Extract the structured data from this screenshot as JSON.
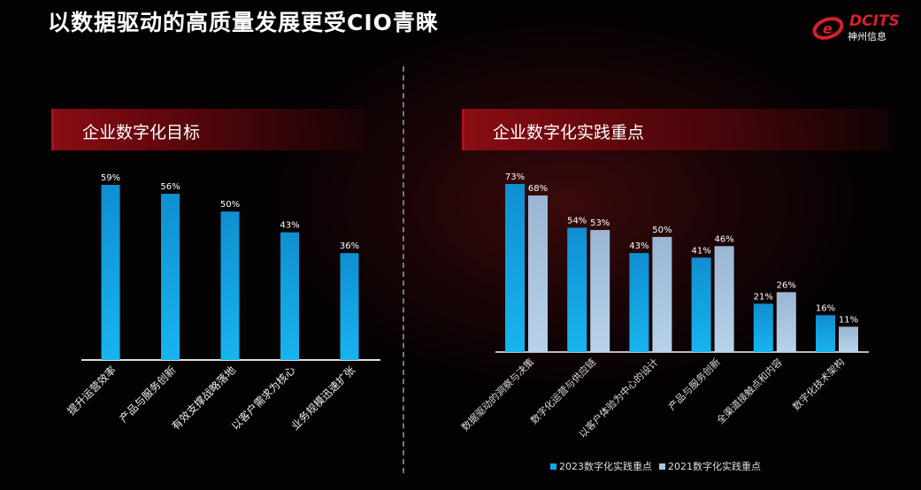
{
  "title": "以数据驱动的高质量发展更受CIO青睐",
  "logo": {
    "en": "DCITS",
    "cn": "神州信息"
  },
  "colors": {
    "series2023": "#13a6e6",
    "series2021": "#a9c4e0",
    "header": "#8a0d14"
  },
  "chart_data": [
    {
      "type": "bar",
      "title": "企业数字化目标",
      "categories": [
        "提升运营效率",
        "产品与服务创新",
        "有效支撑战略落地",
        "以客户需求为核心",
        "业务规模迅速扩张"
      ],
      "values": [
        59,
        56,
        50,
        43,
        36
      ],
      "value_suffix": "%",
      "ylim": [
        0,
        60
      ],
      "grid": false
    },
    {
      "type": "bar",
      "title": "企业数字化实践重点",
      "categories": [
        "数据驱动的洞察与决策",
        "数字化运营与供应链",
        "以客户体验为中心的设计",
        "产品与服务创新",
        "全渠道接触点和内容",
        "数字化技术架构"
      ],
      "series": [
        {
          "name": "2023数字化实践重点",
          "values": [
            73,
            54,
            43,
            41,
            21,
            16
          ]
        },
        {
          "name": "2021数字化实践重点",
          "values": [
            68,
            53,
            50,
            46,
            26,
            11
          ]
        }
      ],
      "value_suffix": "%",
      "ylim": [
        0,
        75
      ],
      "legend": "bottom",
      "grid": false
    }
  ]
}
